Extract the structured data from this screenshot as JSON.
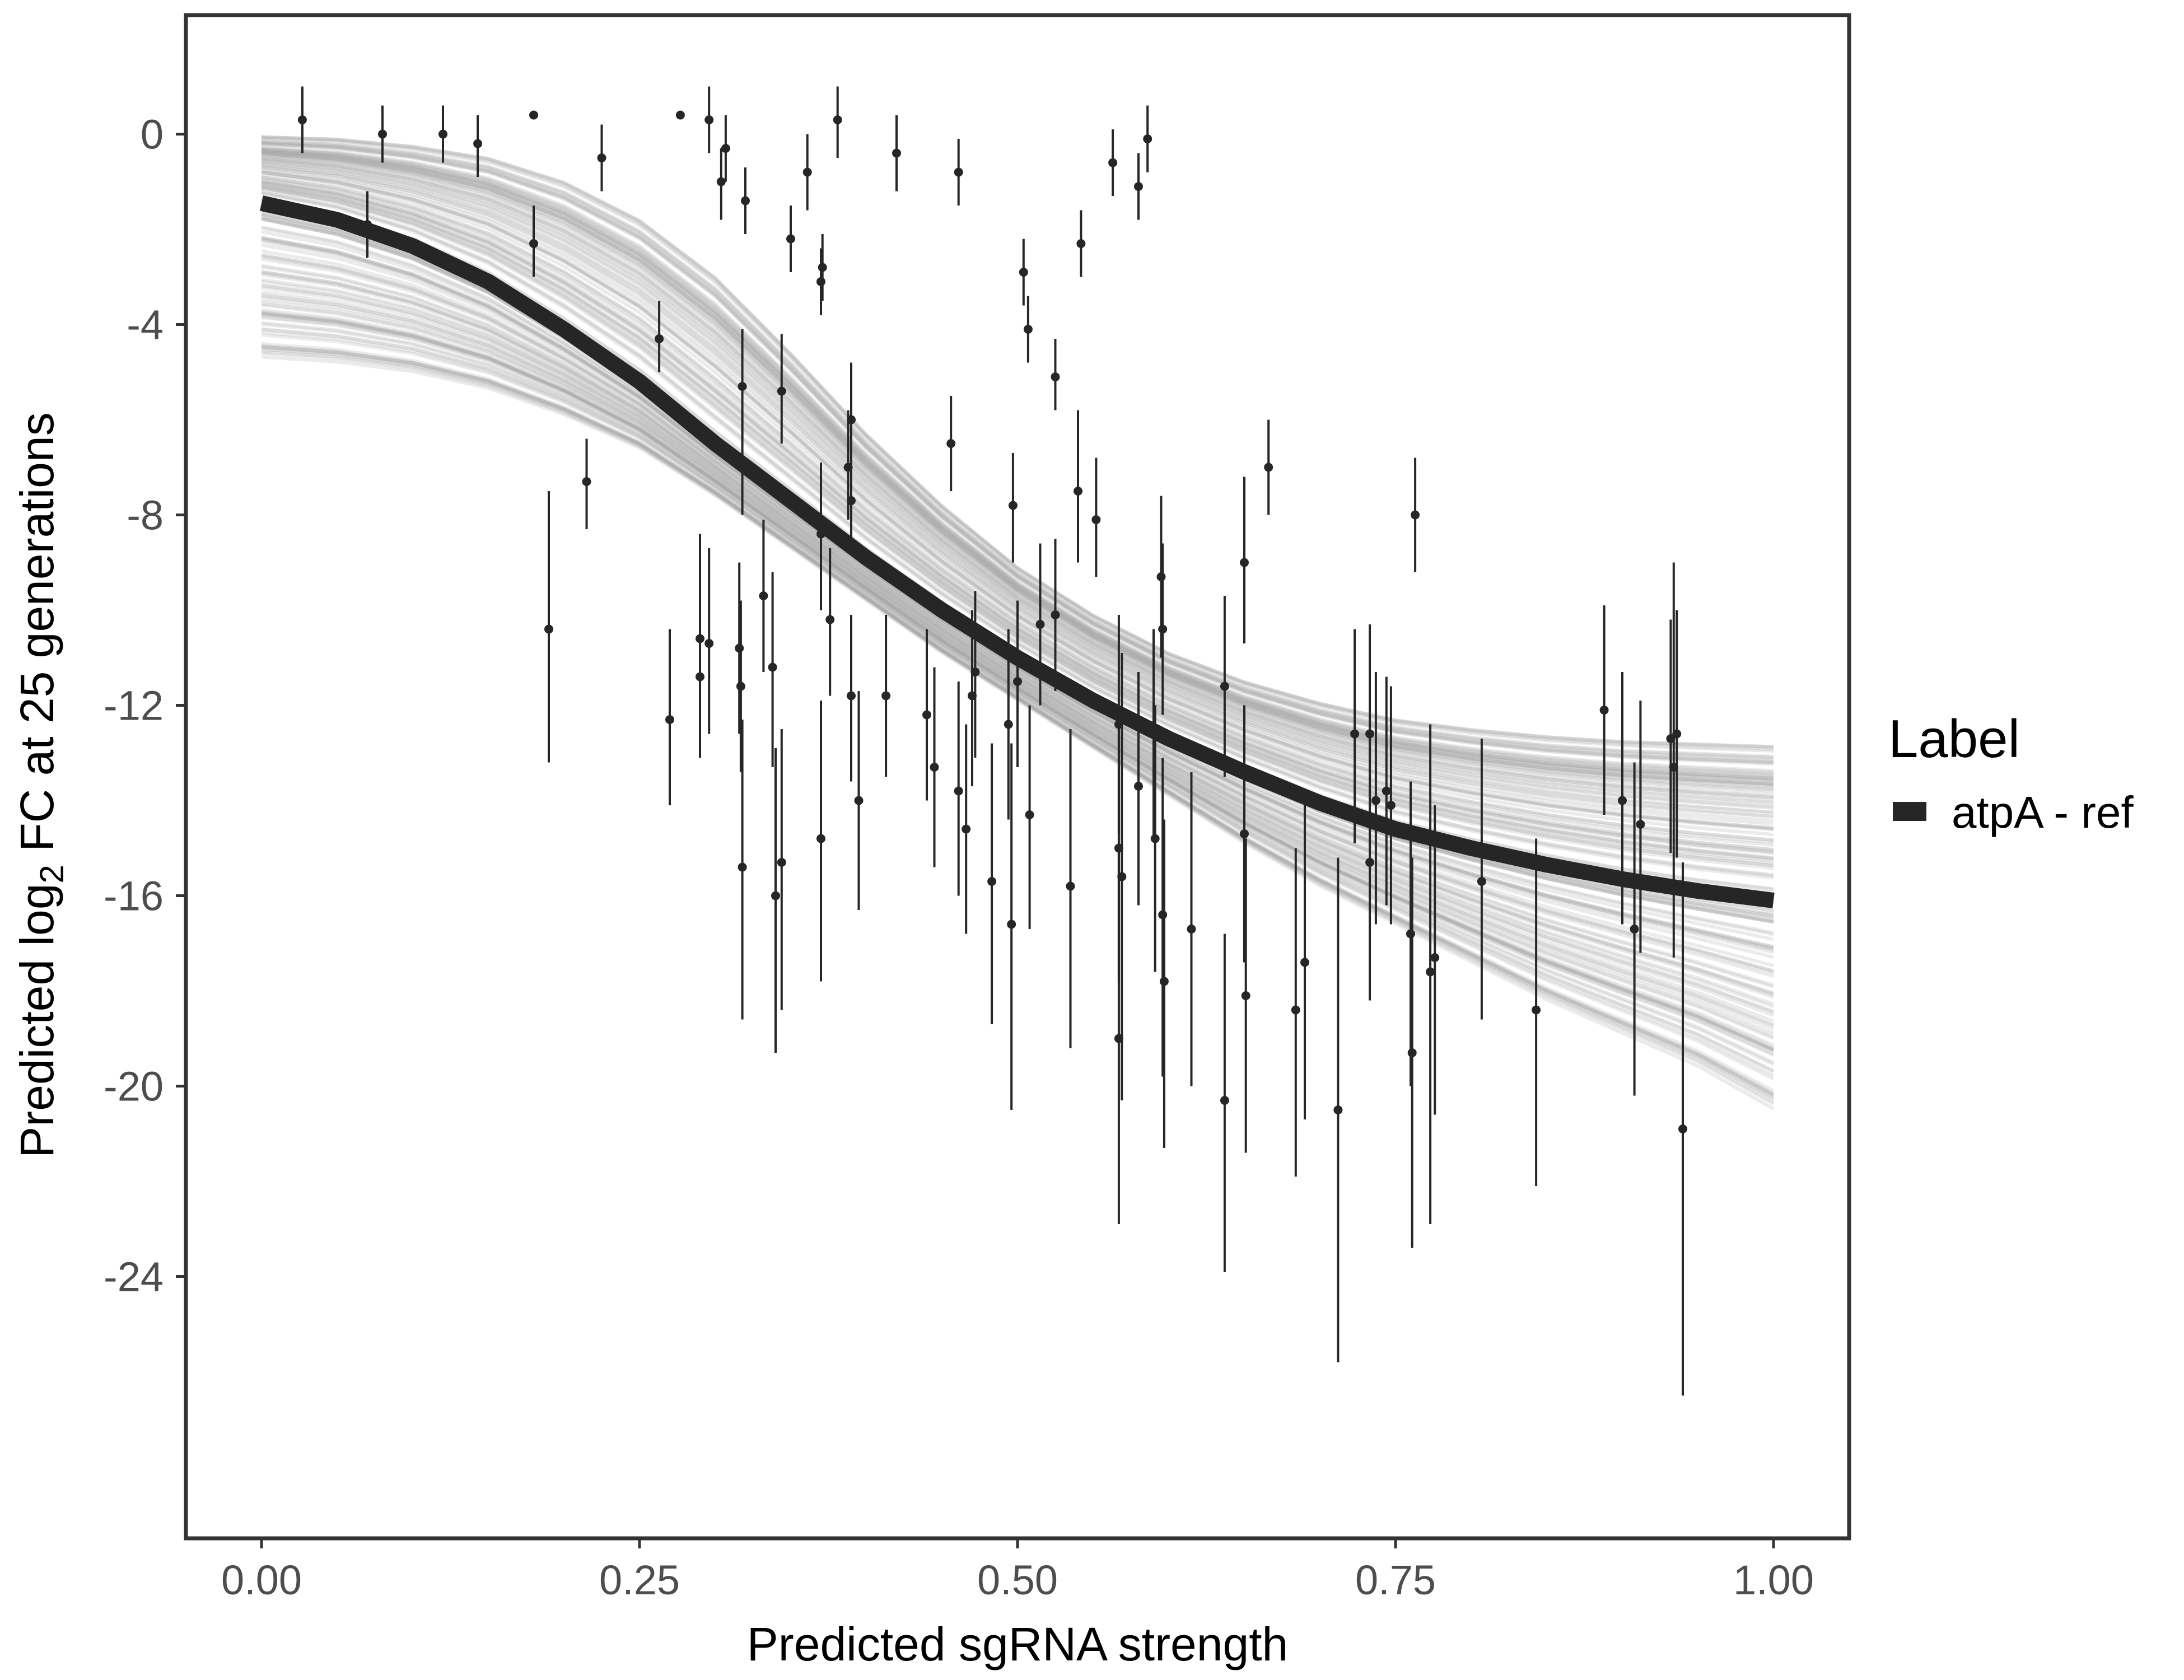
{
  "chart_data": {
    "type": "scatter",
    "xlabel": "Predicted sgRNA strength",
    "ylabel_prefix": "Predicted  log",
    "ylabel_subscript": "2",
    "ylabel_suffix": " FC at 25 generations",
    "xlim": [
      -0.05,
      1.05
    ],
    "ylim": [
      -29.5,
      2.5
    ],
    "x_ticks": [
      0.0,
      0.25,
      0.5,
      0.75,
      1.0
    ],
    "x_tick_labels": [
      "0.00",
      "0.25",
      "0.50",
      "0.75",
      "1.00"
    ],
    "y_ticks": [
      0,
      -4,
      -8,
      -12,
      -16,
      -20,
      -24
    ],
    "y_tick_labels": [
      "0",
      "-4",
      "-8",
      "-12",
      "-16",
      "-20",
      "-24"
    ],
    "grid": false,
    "legend": {
      "title": "Label",
      "position": "right",
      "entries": [
        {
          "label": "atpA - ref",
          "color": "#262626"
        }
      ]
    },
    "colors": {
      "fit_line": "#262626",
      "posterior_draws": "#a6a6a6",
      "points": "#262626",
      "panel_border": "#333333",
      "tick_label": "#4d4d4d"
    },
    "fit_curve": {
      "x": [
        0.0,
        0.05,
        0.1,
        0.15,
        0.2,
        0.25,
        0.3,
        0.35,
        0.4,
        0.45,
        0.5,
        0.55,
        0.6,
        0.65,
        0.7,
        0.75,
        0.8,
        0.85,
        0.9,
        0.95,
        1.0
      ],
      "y": [
        -1.45,
        -1.8,
        -2.35,
        -3.1,
        -4.1,
        -5.2,
        -6.5,
        -7.7,
        -8.9,
        -10.0,
        -11.0,
        -11.9,
        -12.7,
        -13.4,
        -14.05,
        -14.6,
        -15.0,
        -15.35,
        -15.65,
        -15.9,
        -16.1
      ]
    },
    "posterior_band": {
      "x": [
        0.0,
        0.05,
        0.1,
        0.15,
        0.2,
        0.25,
        0.3,
        0.35,
        0.4,
        0.45,
        0.5,
        0.55,
        0.6,
        0.65,
        0.7,
        0.75,
        0.8,
        0.85,
        0.9,
        0.95,
        1.0
      ],
      "lower": [
        -4.7,
        -4.8,
        -5.0,
        -5.35,
        -5.9,
        -6.6,
        -7.6,
        -8.7,
        -9.8,
        -10.9,
        -11.9,
        -12.9,
        -13.9,
        -14.9,
        -15.8,
        -16.6,
        -17.4,
        -18.2,
        -18.9,
        -19.6,
        -20.5
      ],
      "upper": [
        -0.05,
        -0.1,
        -0.25,
        -0.5,
        -1.0,
        -1.8,
        -3.0,
        -4.6,
        -6.3,
        -7.8,
        -9.1,
        -10.1,
        -10.9,
        -11.5,
        -11.95,
        -12.3,
        -12.5,
        -12.65,
        -12.75,
        -12.8,
        -12.85
      ]
    },
    "points": [
      {
        "x": 0.027,
        "y": 0.3,
        "ylo": -0.4,
        "yhi": 1.0
      },
      {
        "x": 0.07,
        "y": -1.9,
        "ylo": -2.6,
        "yhi": -1.2
      },
      {
        "x": 0.08,
        "y": 0.0,
        "ylo": -0.6,
        "yhi": 0.6
      },
      {
        "x": 0.12,
        "y": 0.0,
        "ylo": -0.6,
        "yhi": 0.6
      },
      {
        "x": 0.143,
        "y": -0.2,
        "ylo": -0.9,
        "yhi": 0.4
      },
      {
        "x": 0.18,
        "y": 0.4
      },
      {
        "x": 0.18,
        "y": -2.3,
        "ylo": -3.0,
        "yhi": -1.5
      },
      {
        "x": 0.19,
        "y": -10.4,
        "ylo": -13.2,
        "yhi": -7.5
      },
      {
        "x": 0.215,
        "y": -7.3,
        "ylo": -8.3,
        "yhi": -6.4
      },
      {
        "x": 0.225,
        "y": -0.5,
        "ylo": -1.2,
        "yhi": 0.2
      },
      {
        "x": 0.263,
        "y": -4.3,
        "ylo": -5.0,
        "yhi": -3.5
      },
      {
        "x": 0.27,
        "y": -12.3,
        "ylo": -14.1,
        "yhi": -10.4
      },
      {
        "x": 0.277,
        "y": 0.4
      },
      {
        "x": 0.29,
        "y": -10.6,
        "ylo": -12.4,
        "yhi": -8.4
      },
      {
        "x": 0.29,
        "y": -11.4,
        "ylo": -13.1,
        "yhi": -9.6
      },
      {
        "x": 0.296,
        "y": -10.7,
        "ylo": -12.6,
        "yhi": -8.7
      },
      {
        "x": 0.296,
        "y": 0.3,
        "ylo": -0.4,
        "yhi": 1.0
      },
      {
        "x": 0.304,
        "y": -1.0,
        "ylo": -1.8,
        "yhi": -0.3
      },
      {
        "x": 0.307,
        "y": -0.3,
        "ylo": -1.0,
        "yhi": 0.4
      },
      {
        "x": 0.316,
        "y": -10.8,
        "ylo": -12.6,
        "yhi": -9.0
      },
      {
        "x": 0.317,
        "y": -11.6,
        "ylo": -13.4,
        "yhi": -9.8
      },
      {
        "x": 0.318,
        "y": -5.3,
        "ylo": -6.4,
        "yhi": -4.1
      },
      {
        "x": 0.318,
        "y": -6.9,
        "ylo": -8.0,
        "yhi": -5.8
      },
      {
        "x": 0.318,
        "y": -15.4,
        "ylo": -18.6,
        "yhi": -12.3
      },
      {
        "x": 0.32,
        "y": -1.4,
        "ylo": -2.1,
        "yhi": -0.7
      },
      {
        "x": 0.332,
        "y": -9.7,
        "ylo": -11.3,
        "yhi": -8.1
      },
      {
        "x": 0.338,
        "y": -11.2,
        "ylo": -13.3,
        "yhi": -9.2
      },
      {
        "x": 0.34,
        "y": -16.0,
        "ylo": -19.3,
        "yhi": -12.9
      },
      {
        "x": 0.344,
        "y": -5.4,
        "ylo": -6.5,
        "yhi": -4.2
      },
      {
        "x": 0.344,
        "y": -15.3,
        "ylo": -18.4,
        "yhi": -12.5
      },
      {
        "x": 0.35,
        "y": -2.2,
        "ylo": -2.9,
        "yhi": -1.5
      },
      {
        "x": 0.361,
        "y": -0.8,
        "ylo": -1.6,
        "yhi": 0.0
      },
      {
        "x": 0.37,
        "y": -3.1,
        "ylo": -3.8,
        "yhi": -2.4
      },
      {
        "x": 0.371,
        "y": -2.8,
        "ylo": -3.5,
        "yhi": -2.1
      },
      {
        "x": 0.37,
        "y": -8.4,
        "ylo": -10.0,
        "yhi": -6.9
      },
      {
        "x": 0.37,
        "y": -14.8,
        "ylo": -17.8,
        "yhi": -11.9
      },
      {
        "x": 0.376,
        "y": -10.2,
        "ylo": -11.8,
        "yhi": -8.7
      },
      {
        "x": 0.381,
        "y": 0.3,
        "ylo": -0.5,
        "yhi": 1.0
      },
      {
        "x": 0.388,
        "y": -7.0,
        "ylo": -8.1,
        "yhi": -5.8
      },
      {
        "x": 0.39,
        "y": -6.0,
        "ylo": -7.1,
        "yhi": -4.8
      },
      {
        "x": 0.39,
        "y": -7.7,
        "ylo": -8.8,
        "yhi": -6.5
      },
      {
        "x": 0.39,
        "y": -11.8,
        "ylo": -13.6,
        "yhi": -10.1
      },
      {
        "x": 0.395,
        "y": -14.0,
        "ylo": -16.3,
        "yhi": -11.7
      },
      {
        "x": 0.413,
        "y": -11.8,
        "ylo": -13.5,
        "yhi": -10.1
      },
      {
        "x": 0.42,
        "y": -0.4,
        "ylo": -1.2,
        "yhi": 0.4
      },
      {
        "x": 0.44,
        "y": -12.2,
        "ylo": -14.0,
        "yhi": -10.4
      },
      {
        "x": 0.445,
        "y": -13.3,
        "ylo": -15.4,
        "yhi": -11.2
      },
      {
        "x": 0.456,
        "y": -6.5,
        "ylo": -7.5,
        "yhi": -5.5
      },
      {
        "x": 0.461,
        "y": -0.8,
        "ylo": -1.5,
        "yhi": -0.1
      },
      {
        "x": 0.461,
        "y": -13.8,
        "ylo": -16.0,
        "yhi": -11.5
      },
      {
        "x": 0.466,
        "y": -14.6,
        "ylo": -16.8,
        "yhi": -12.4
      },
      {
        "x": 0.47,
        "y": -11.8,
        "ylo": -13.7,
        "yhi": -10.0
      },
      {
        "x": 0.472,
        "y": -11.3,
        "ylo": -13.1,
        "yhi": -9.6
      },
      {
        "x": 0.483,
        "y": -15.7,
        "ylo": -18.7,
        "yhi": -12.8
      },
      {
        "x": 0.494,
        "y": -12.4,
        "ylo": -14.4,
        "yhi": -10.4
      },
      {
        "x": 0.496,
        "y": -16.6,
        "ylo": -20.5,
        "yhi": -12.8
      },
      {
        "x": 0.497,
        "y": -7.8,
        "ylo": -9.0,
        "yhi": -6.7
      },
      {
        "x": 0.5,
        "y": -11.5,
        "ylo": -13.3,
        "yhi": -9.8
      },
      {
        "x": 0.504,
        "y": -2.9,
        "ylo": -3.6,
        "yhi": -2.2
      },
      {
        "x": 0.507,
        "y": -4.1,
        "ylo": -4.8,
        "yhi": -3.4
      },
      {
        "x": 0.508,
        "y": -14.3,
        "ylo": -16.7,
        "yhi": -12.0
      },
      {
        "x": 0.515,
        "y": -10.3,
        "ylo": -12.0,
        "yhi": -8.6
      },
      {
        "x": 0.525,
        "y": -5.1,
        "ylo": -5.8,
        "yhi": -4.3
      },
      {
        "x": 0.525,
        "y": -10.1,
        "ylo": -11.7,
        "yhi": -8.5
      },
      {
        "x": 0.535,
        "y": -15.8,
        "ylo": -19.2,
        "yhi": -12.5
      },
      {
        "x": 0.54,
        "y": -7.5,
        "ylo": -9.0,
        "yhi": -5.8
      },
      {
        "x": 0.542,
        "y": -2.3,
        "ylo": -3.0,
        "yhi": -1.6
      },
      {
        "x": 0.552,
        "y": -8.1,
        "ylo": -9.3,
        "yhi": -6.8
      },
      {
        "x": 0.563,
        "y": -0.6,
        "ylo": -1.3,
        "yhi": 0.1
      },
      {
        "x": 0.567,
        "y": -12.4,
        "ylo": -14.7,
        "yhi": -10.1
      },
      {
        "x": 0.567,
        "y": -15.0,
        "ylo": -17.8,
        "yhi": -12.2
      },
      {
        "x": 0.567,
        "y": -19.0,
        "ylo": -22.9,
        "yhi": -15.0
      },
      {
        "x": 0.569,
        "y": -15.6,
        "ylo": -20.3,
        "yhi": -10.9
      },
      {
        "x": 0.58,
        "y": -1.1,
        "ylo": -1.8,
        "yhi": -0.4
      },
      {
        "x": 0.58,
        "y": -13.7,
        "ylo": -16.2,
        "yhi": -11.3
      },
      {
        "x": 0.586,
        "y": -0.1,
        "ylo": -0.8,
        "yhi": 0.6
      },
      {
        "x": 0.59,
        "y": -12.6,
        "ylo": -14.8,
        "yhi": -10.4
      },
      {
        "x": 0.591,
        "y": -14.8,
        "ylo": -17.6,
        "yhi": -12.0
      },
      {
        "x": 0.595,
        "y": -9.3,
        "ylo": -11.0,
        "yhi": -7.6
      },
      {
        "x": 0.596,
        "y": -10.4,
        "ylo": -12.2,
        "yhi": -8.6
      },
      {
        "x": 0.596,
        "y": -16.4,
        "ylo": -19.8,
        "yhi": -13.1
      },
      {
        "x": 0.597,
        "y": -17.8,
        "ylo": -21.3,
        "yhi": -14.4
      },
      {
        "x": 0.615,
        "y": -16.7,
        "ylo": -20.0,
        "yhi": -13.4
      },
      {
        "x": 0.637,
        "y": -11.6,
        "ylo": -13.5,
        "yhi": -9.7
      },
      {
        "x": 0.637,
        "y": -20.3,
        "ylo": -23.9,
        "yhi": -16.8
      },
      {
        "x": 0.65,
        "y": -9.0,
        "ylo": -10.7,
        "yhi": -7.2
      },
      {
        "x": 0.65,
        "y": -14.7,
        "ylo": -17.4,
        "yhi": -12.0
      },
      {
        "x": 0.651,
        "y": -18.1,
        "ylo": -21.4,
        "yhi": -14.8
      },
      {
        "x": 0.666,
        "y": -7.0,
        "ylo": -8.0,
        "yhi": -6.0
      },
      {
        "x": 0.684,
        "y": -18.4,
        "ylo": -21.9,
        "yhi": -15.0
      },
      {
        "x": 0.69,
        "y": -17.4,
        "ylo": -20.7,
        "yhi": -14.1
      },
      {
        "x": 0.712,
        "y": -20.5,
        "ylo": -25.8,
        "yhi": -15.2
      },
      {
        "x": 0.723,
        "y": -12.6,
        "ylo": -14.9,
        "yhi": -10.4
      },
      {
        "x": 0.733,
        "y": -12.6,
        "ylo": -15.0,
        "yhi": -10.3
      },
      {
        "x": 0.733,
        "y": -15.3,
        "ylo": -18.2,
        "yhi": -12.3
      },
      {
        "x": 0.737,
        "y": -14.0,
        "ylo": -16.6,
        "yhi": -11.3
      },
      {
        "x": 0.744,
        "y": -13.8,
        "ylo": -16.2,
        "yhi": -11.4
      },
      {
        "x": 0.747,
        "y": -14.1,
        "ylo": -16.6,
        "yhi": -11.6
      },
      {
        "x": 0.76,
        "y": -16.8,
        "ylo": -20.0,
        "yhi": -13.6
      },
      {
        "x": 0.761,
        "y": -19.3,
        "ylo": -23.4,
        "yhi": -15.2
      },
      {
        "x": 0.763,
        "y": -8.0,
        "ylo": -9.2,
        "yhi": -6.8
      },
      {
        "x": 0.773,
        "y": -17.6,
        "ylo": -22.9,
        "yhi": -12.4
      },
      {
        "x": 0.776,
        "y": -17.3,
        "ylo": -20.6,
        "yhi": -14.1
      },
      {
        "x": 0.807,
        "y": -15.7,
        "ylo": -18.6,
        "yhi": -12.7
      },
      {
        "x": 0.843,
        "y": -18.4,
        "ylo": -22.1,
        "yhi": -14.8
      },
      {
        "x": 0.888,
        "y": -12.1,
        "ylo": -14.3,
        "yhi": -9.9
      },
      {
        "x": 0.9,
        "y": -14.0,
        "ylo": -16.6,
        "yhi": -11.3
      },
      {
        "x": 0.908,
        "y": -16.7,
        "ylo": -20.2,
        "yhi": -13.2
      },
      {
        "x": 0.912,
        "y": -14.5,
        "ylo": -17.2,
        "yhi": -11.9
      },
      {
        "x": 0.932,
        "y": -12.7,
        "ylo": -15.1,
        "yhi": -10.2
      },
      {
        "x": 0.934,
        "y": -13.3,
        "ylo": -17.3,
        "yhi": -9.0
      },
      {
        "x": 0.936,
        "y": -12.6,
        "ylo": -15.2,
        "yhi": -10.0
      },
      {
        "x": 0.94,
        "y": -20.9,
        "ylo": -26.5,
        "yhi": -15.3
      }
    ]
  }
}
